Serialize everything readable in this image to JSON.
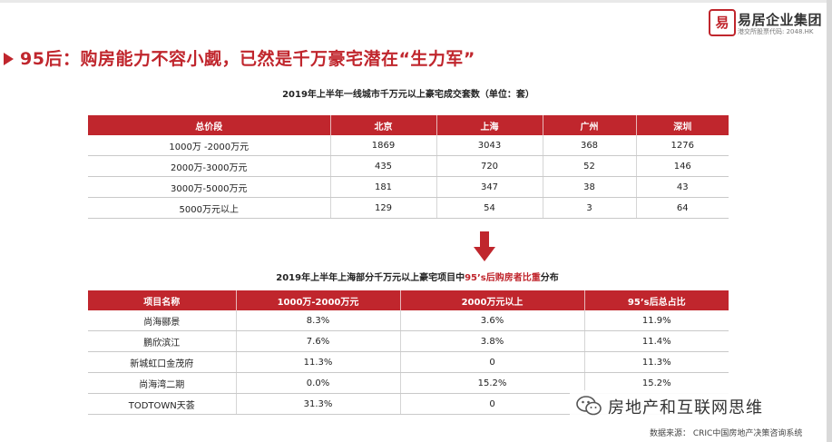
{
  "brand": {
    "seal_text": "易",
    "name": "易居企业集团",
    "stock_code": "港交所股票代码: 2048.HK"
  },
  "headline": "95后：购房能力不容小觑，已然是千万豪宅潜在“生力军”",
  "table1": {
    "caption": "2019年上半年一线城市千万元以上豪宅成交套数（单位：套）",
    "headers": [
      "总价段",
      "北京",
      "上海",
      "广州",
      "深圳"
    ],
    "rows": [
      [
        "1000万 -2000万元",
        "1869",
        "3043",
        "368",
        "1276"
      ],
      [
        "2000万-3000万元",
        "435",
        "720",
        "52",
        "146"
      ],
      [
        "3000万-5000万元",
        "181",
        "347",
        "38",
        "43"
      ],
      [
        "5000万元以上",
        "129",
        "54",
        "3",
        "64"
      ]
    ]
  },
  "table2": {
    "caption_before": "2019年上半年上海部分千万元以上豪宅项目中",
    "caption_highlight": "95’s后购房者比重",
    "caption_after": "分布",
    "headers": [
      "项目名称",
      "1000万-2000万元",
      "2000万元以上",
      "95’s后总占比"
    ],
    "rows": [
      [
        "尚海郦景",
        "8.3%",
        "3.6%",
        "11.9%"
      ],
      [
        "鹏欣滨江",
        "7.6%",
        "3.8%",
        "11.4%"
      ],
      [
        "新城虹口金茂府",
        "11.3%",
        "0",
        "11.3%"
      ],
      [
        "尚海湾二期",
        "0.0%",
        "15.2%",
        "15.2%"
      ],
      [
        "TODTOWN天荟",
        "31.3%",
        "0",
        ""
      ]
    ]
  },
  "watermark": "房地产和互联网思维",
  "source": "数据来源：  CRIC中国房地产决策咨询系统",
  "colors": {
    "accent": "#c0262d"
  }
}
